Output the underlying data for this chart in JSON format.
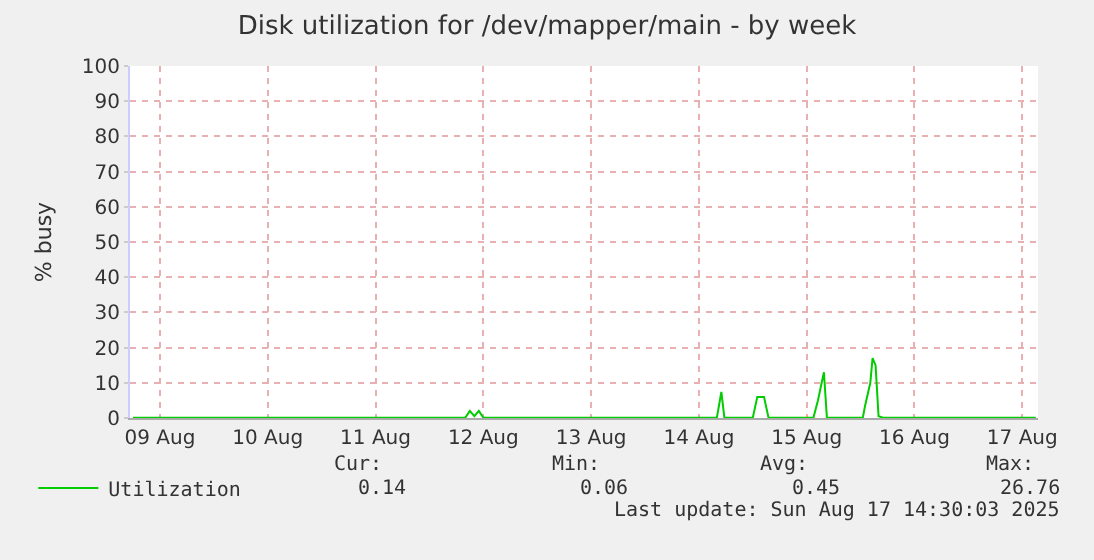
{
  "chart_data": {
    "type": "line",
    "title": "Disk utilization for /dev/mapper/main - by week",
    "ylabel": "% busy",
    "x": [
      "2025-08-08T18:00",
      "2025-08-11T20:00",
      "2025-08-11T21:00",
      "2025-08-11T22:00",
      "2025-08-11T23:00",
      "2025-08-12T00:00",
      "2025-08-14T04:00",
      "2025-08-14T05:00",
      "2025-08-14T05:40",
      "2025-08-14T12:00",
      "2025-08-14T13:00",
      "2025-08-14T14:30",
      "2025-08-14T15:30",
      "2025-08-15T01:30",
      "2025-08-15T02:30",
      "2025-08-15T03:50",
      "2025-08-15T04:30",
      "2025-08-15T12:30",
      "2025-08-15T13:00",
      "2025-08-15T14:10",
      "2025-08-15T14:40",
      "2025-08-15T15:20",
      "2025-08-15T16:00",
      "2025-08-15T17:00",
      "2025-08-17T03:00"
    ],
    "series": [
      {
        "name": "Utilization",
        "color": "#00cc00",
        "values": [
          0.1,
          0.1,
          2,
          0.5,
          2,
          0.1,
          0.1,
          7.4,
          0.1,
          0.1,
          6,
          6,
          0.1,
          0.1,
          5,
          13,
          0.1,
          0.1,
          3.5,
          10,
          17,
          15,
          0.5,
          0.1,
          0.1
        ]
      }
    ],
    "xlim": [
      "2025-08-08T17:20",
      "2025-08-17T03:30"
    ],
    "xticks": [
      {
        "value": "2025-08-09",
        "label": "09 Aug"
      },
      {
        "value": "2025-08-10",
        "label": "10 Aug"
      },
      {
        "value": "2025-08-11",
        "label": "11 Aug"
      },
      {
        "value": "2025-08-12",
        "label": "12 Aug"
      },
      {
        "value": "2025-08-13",
        "label": "13 Aug"
      },
      {
        "value": "2025-08-14",
        "label": "14 Aug"
      },
      {
        "value": "2025-08-15",
        "label": "15 Aug"
      },
      {
        "value": "2025-08-16",
        "label": "16 Aug"
      },
      {
        "value": "2025-08-17",
        "label": "17 Aug"
      }
    ],
    "ylim": [
      0,
      100
    ],
    "yticks": [
      0,
      10,
      20,
      30,
      40,
      50,
      60,
      70,
      80,
      90,
      100
    ],
    "grid": true,
    "legend": "bottom left",
    "marker": "none",
    "line_style": "solid",
    "annotations": [
      "Cur:",
      "Min:",
      "Avg:",
      "Max:",
      "0.14",
      "0.06",
      "0.45",
      "26.76",
      "Last update: Sun Aug 17 14:30:03 2025"
    ]
  }
}
